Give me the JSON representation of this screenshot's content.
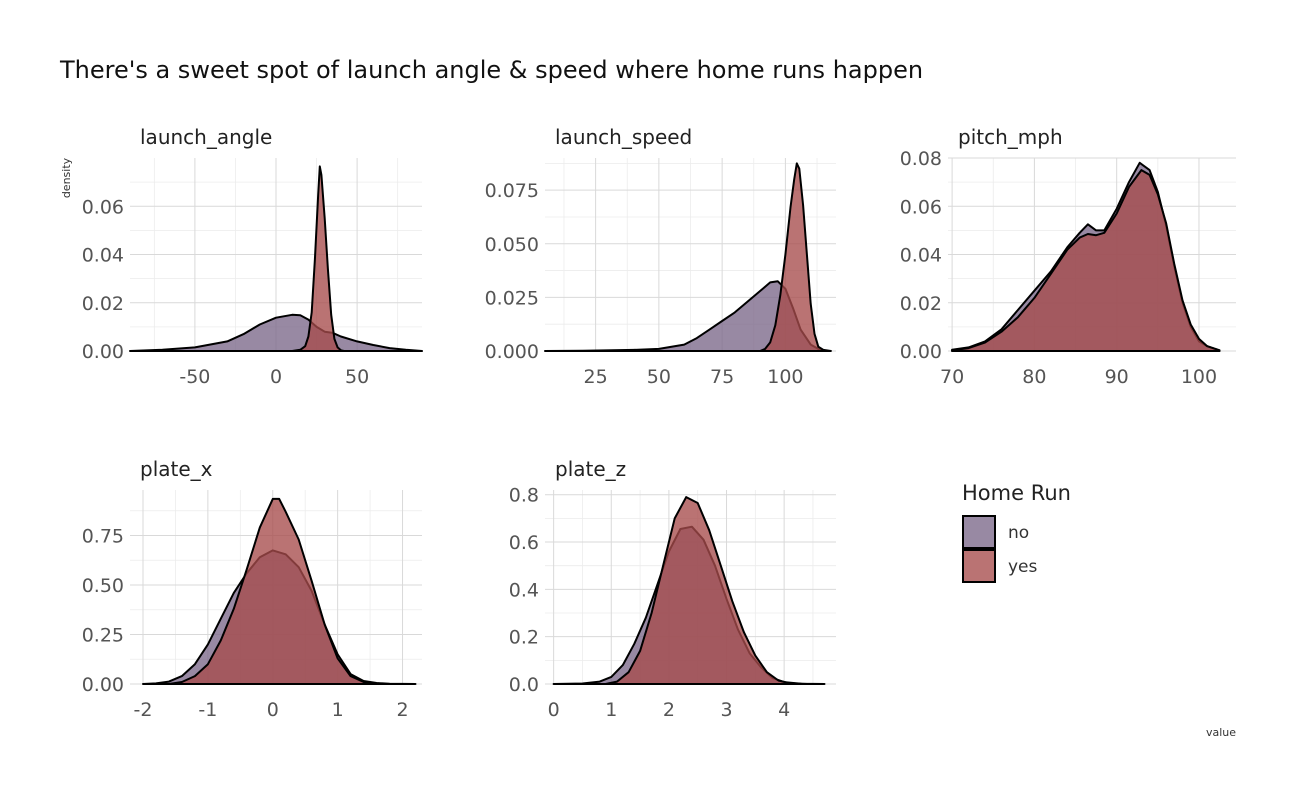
{
  "colors": {
    "no": "#7b6889",
    "yes": "#a64c4c",
    "grid_major": "#d9d9d9",
    "grid_minor": "#ececec"
  },
  "chart_data": {
    "type": "area",
    "title": "There's a sweet spot of launch angle & speed where home runs happen",
    "xlabel": "value",
    "ylabel": "density",
    "grid": true,
    "legend": {
      "title": "Home Run",
      "position": "right",
      "entries": [
        "no",
        "yes"
      ]
    },
    "facets": [
      {
        "name": "launch_angle",
        "xlim": [
          -90,
          90
        ],
        "ylim": [
          0,
          0.08
        ],
        "x_ticks": [
          -50,
          0,
          50
        ],
        "x_tick_labels": [
          "-50",
          "0",
          "50"
        ],
        "y_ticks": [
          0,
          0.02,
          0.04,
          0.06
        ],
        "y_tick_labels": [
          "0.00",
          "0.02",
          "0.04",
          "0.06"
        ],
        "series": [
          {
            "name": "no",
            "points": [
              [
                -90,
                0
              ],
              [
                -70,
                0.0005
              ],
              [
                -50,
                0.0015
              ],
              [
                -30,
                0.004
              ],
              [
                -20,
                0.007
              ],
              [
                -10,
                0.011
              ],
              [
                0,
                0.0138
              ],
              [
                10,
                0.015
              ],
              [
                15,
                0.0148
              ],
              [
                20,
                0.013
              ],
              [
                25,
                0.01
              ],
              [
                30,
                0.008
              ],
              [
                35,
                0.0075
              ],
              [
                40,
                0.006
              ],
              [
                50,
                0.004
              ],
              [
                60,
                0.0025
              ],
              [
                70,
                0.0012
              ],
              [
                80,
                0.0005
              ],
              [
                90,
                0
              ]
            ]
          },
          {
            "name": "yes",
            "points": [
              [
                10,
                0
              ],
              [
                15,
                0.0005
              ],
              [
                18,
                0.002
              ],
              [
                20,
                0.006
              ],
              [
                22,
                0.016
              ],
              [
                24,
                0.038
              ],
              [
                26,
                0.065
              ],
              [
                27,
                0.0765
              ],
              [
                28,
                0.073
              ],
              [
                30,
                0.055
              ],
              [
                32,
                0.034
              ],
              [
                34,
                0.015
              ],
              [
                36,
                0.005
              ],
              [
                38,
                0.0015
              ],
              [
                40,
                0.0003
              ],
              [
                42,
                0
              ]
            ]
          }
        ]
      },
      {
        "name": "launch_speed",
        "xlim": [
          5,
          120
        ],
        "ylim": [
          0,
          0.09
        ],
        "x_ticks": [
          25,
          50,
          75,
          100
        ],
        "x_tick_labels": [
          "25",
          "50",
          "75",
          "100"
        ],
        "y_ticks": [
          0,
          0.025,
          0.05,
          0.075
        ],
        "y_tick_labels": [
          "0.000",
          "0.025",
          "0.050",
          "0.075"
        ],
        "series": [
          {
            "name": "no",
            "points": [
              [
                5,
                0
              ],
              [
                20,
                0.0001
              ],
              [
                40,
                0.0005
              ],
              [
                50,
                0.001
              ],
              [
                60,
                0.003
              ],
              [
                65,
                0.006
              ],
              [
                70,
                0.01
              ],
              [
                75,
                0.014
              ],
              [
                80,
                0.018
              ],
              [
                85,
                0.023
              ],
              [
                90,
                0.028
              ],
              [
                94,
                0.032
              ],
              [
                97,
                0.0325
              ],
              [
                100,
                0.029
              ],
              [
                103,
                0.02
              ],
              [
                106,
                0.01
              ],
              [
                110,
                0.003
              ],
              [
                113,
                0.001
              ],
              [
                116,
                0
              ]
            ]
          },
          {
            "name": "yes",
            "points": [
              [
                90,
                0
              ],
              [
                92,
                0.001
              ],
              [
                94,
                0.004
              ],
              [
                96,
                0.012
              ],
              [
                98,
                0.026
              ],
              [
                100,
                0.045
              ],
              [
                102,
                0.067
              ],
              [
                103.5,
                0.08
              ],
              [
                104.5,
                0.0875
              ],
              [
                105.5,
                0.085
              ],
              [
                107,
                0.068
              ],
              [
                108.5,
                0.045
              ],
              [
                110,
                0.022
              ],
              [
                111.5,
                0.008
              ],
              [
                113,
                0.002
              ],
              [
                115,
                0.0005
              ],
              [
                118,
                0
              ]
            ]
          }
        ]
      },
      {
        "name": "pitch_mph",
        "xlim": [
          69.5,
          104.5
        ],
        "ylim": [
          0,
          0.08
        ],
        "x_ticks": [
          70,
          80,
          90,
          100
        ],
        "x_tick_labels": [
          "70",
          "80",
          "90",
          "100"
        ],
        "y_ticks": [
          0,
          0.02,
          0.04,
          0.06,
          0.08
        ],
        "y_tick_labels": [
          "0.00",
          "0.02",
          "0.04",
          "0.06",
          "0.08"
        ],
        "series": [
          {
            "name": "no",
            "points": [
              [
                70,
                0.0005
              ],
              [
                72,
                0.0015
              ],
              [
                74,
                0.004
              ],
              [
                76,
                0.009
              ],
              [
                78,
                0.017
              ],
              [
                80,
                0.025
              ],
              [
                82,
                0.033
              ],
              [
                84,
                0.043
              ],
              [
                85.5,
                0.049
              ],
              [
                86.5,
                0.0525
              ],
              [
                87.5,
                0.05
              ],
              [
                88.5,
                0.05
              ],
              [
                90,
                0.059
              ],
              [
                91.5,
                0.07
              ],
              [
                92.8,
                0.078
              ],
              [
                94,
                0.075
              ],
              [
                95,
                0.066
              ],
              [
                96,
                0.052
              ],
              [
                97,
                0.035
              ],
              [
                98,
                0.02
              ],
              [
                99,
                0.01
              ],
              [
                100,
                0.004
              ],
              [
                101,
                0.002
              ],
              [
                102.5,
                0.0003
              ]
            ]
          },
          {
            "name": "yes",
            "points": [
              [
                70,
                0.0003
              ],
              [
                72,
                0.0012
              ],
              [
                74,
                0.0035
              ],
              [
                76,
                0.008
              ],
              [
                78,
                0.014
              ],
              [
                80,
                0.022
              ],
              [
                82,
                0.032
              ],
              [
                84,
                0.042
              ],
              [
                85.5,
                0.047
              ],
              [
                86.5,
                0.0485
              ],
              [
                87.5,
                0.048
              ],
              [
                88.5,
                0.049
              ],
              [
                90,
                0.057
              ],
              [
                91.5,
                0.068
              ],
              [
                93,
                0.075
              ],
              [
                94,
                0.073
              ],
              [
                95,
                0.065
              ],
              [
                96,
                0.053
              ],
              [
                97,
                0.036
              ],
              [
                98,
                0.021
              ],
              [
                99,
                0.011
              ],
              [
                100,
                0.005
              ],
              [
                101,
                0.002
              ],
              [
                102.5,
                0.0003
              ]
            ]
          }
        ]
      },
      {
        "name": "plate_x",
        "xlim": [
          -2.2,
          2.3
        ],
        "ylim": [
          0,
          0.98
        ],
        "x_ticks": [
          -2,
          -1,
          0,
          1,
          2
        ],
        "x_tick_labels": [
          "-2",
          "-1",
          "0",
          "1",
          "2"
        ],
        "y_ticks": [
          0,
          0.25,
          0.5,
          0.75
        ],
        "y_tick_labels": [
          "0.00",
          "0.25",
          "0.50",
          "0.75"
        ],
        "series": [
          {
            "name": "no",
            "points": [
              [
                -2,
                0
              ],
              [
                -1.8,
                0.003
              ],
              [
                -1.6,
                0.012
              ],
              [
                -1.4,
                0.04
              ],
              [
                -1.2,
                0.1
              ],
              [
                -1,
                0.2
              ],
              [
                -0.8,
                0.33
              ],
              [
                -0.6,
                0.46
              ],
              [
                -0.4,
                0.56
              ],
              [
                -0.2,
                0.64
              ],
              [
                0,
                0.675
              ],
              [
                0.2,
                0.655
              ],
              [
                0.4,
                0.59
              ],
              [
                0.6,
                0.47
              ],
              [
                0.8,
                0.3
              ],
              [
                1,
                0.15
              ],
              [
                1.2,
                0.05
              ],
              [
                1.4,
                0.015
              ],
              [
                1.6,
                0.005
              ],
              [
                1.8,
                0.001
              ],
              [
                2.2,
                0
              ]
            ]
          },
          {
            "name": "yes",
            "points": [
              [
                -1.6,
                0
              ],
              [
                -1.4,
                0.01
              ],
              [
                -1.2,
                0.04
              ],
              [
                -1,
                0.1
              ],
              [
                -0.8,
                0.22
              ],
              [
                -0.6,
                0.38
              ],
              [
                -0.4,
                0.58
              ],
              [
                -0.2,
                0.79
              ],
              [
                0,
                0.935
              ],
              [
                0.1,
                0.935
              ],
              [
                0.2,
                0.87
              ],
              [
                0.4,
                0.73
              ],
              [
                0.6,
                0.52
              ],
              [
                0.8,
                0.3
              ],
              [
                1,
                0.13
              ],
              [
                1.2,
                0.04
              ],
              [
                1.4,
                0.01
              ],
              [
                1.6,
                0
              ]
            ]
          }
        ]
      },
      {
        "name": "plate_z",
        "xlim": [
          -0.15,
          4.9
        ],
        "ylim": [
          0,
          0.82
        ],
        "x_ticks": [
          0,
          1,
          2,
          3,
          4
        ],
        "x_tick_labels": [
          "0",
          "1",
          "2",
          "3",
          "4"
        ],
        "y_ticks": [
          0,
          0.2,
          0.4,
          0.6,
          0.8
        ],
        "y_tick_labels": [
          "0.0",
          "0.2",
          "0.4",
          "0.6",
          "0.8"
        ],
        "series": [
          {
            "name": "no",
            "points": [
              [
                0,
                0
              ],
              [
                0.5,
                0.002
              ],
              [
                0.8,
                0.01
              ],
              [
                1,
                0.03
              ],
              [
                1.2,
                0.08
              ],
              [
                1.4,
                0.17
              ],
              [
                1.6,
                0.28
              ],
              [
                1.8,
                0.42
              ],
              [
                2,
                0.56
              ],
              [
                2.2,
                0.655
              ],
              [
                2.4,
                0.665
              ],
              [
                2.6,
                0.61
              ],
              [
                2.8,
                0.5
              ],
              [
                3,
                0.36
              ],
              [
                3.2,
                0.23
              ],
              [
                3.4,
                0.13
              ],
              [
                3.6,
                0.07
              ],
              [
                3.8,
                0.025
              ],
              [
                4,
                0.008
              ],
              [
                4.3,
                0.001
              ],
              [
                4.7,
                0
              ]
            ]
          },
          {
            "name": "yes",
            "points": [
              [
                0.9,
                0
              ],
              [
                1.1,
                0.01
              ],
              [
                1.3,
                0.05
              ],
              [
                1.5,
                0.14
              ],
              [
                1.7,
                0.3
              ],
              [
                1.9,
                0.5
              ],
              [
                2.1,
                0.7
              ],
              [
                2.3,
                0.79
              ],
              [
                2.5,
                0.765
              ],
              [
                2.7,
                0.65
              ],
              [
                2.9,
                0.5
              ],
              [
                3.1,
                0.35
              ],
              [
                3.3,
                0.22
              ],
              [
                3.5,
                0.12
              ],
              [
                3.7,
                0.05
              ],
              [
                3.9,
                0.015
              ],
              [
                4.1,
                0.003
              ],
              [
                4.4,
                0
              ]
            ]
          }
        ]
      }
    ]
  }
}
